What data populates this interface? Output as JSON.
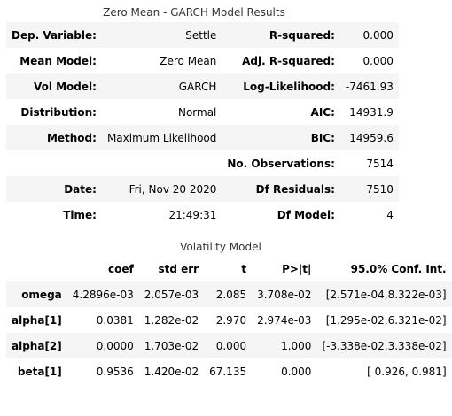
{
  "summary": {
    "caption": "Zero Mean - GARCH Model Results",
    "rows": [
      [
        "Dep. Variable:",
        "Settle",
        "R-squared:",
        "0.000"
      ],
      [
        "Mean Model:",
        "Zero Mean",
        "Adj. R-squared:",
        "0.000"
      ],
      [
        "Vol Model:",
        "GARCH",
        "Log-Likelihood:",
        "-7461.93"
      ],
      [
        "Distribution:",
        "Normal",
        "AIC:",
        "14931.9"
      ],
      [
        "Method:",
        "Maximum Likelihood",
        "BIC:",
        "14959.6"
      ],
      [
        "",
        "",
        "No. Observations:",
        "7514"
      ],
      [
        "Date:",
        "Fri, Nov 20 2020",
        "Df Residuals:",
        "7510"
      ],
      [
        "Time:",
        "21:49:31",
        "Df Model:",
        "4"
      ]
    ]
  },
  "volatility": {
    "caption": "Volatility Model",
    "headers": [
      "",
      "coef",
      "std err",
      "t",
      "P>|t|",
      "95.0% Conf. Int."
    ],
    "rows": [
      [
        "omega",
        "4.2896e-03",
        "2.057e-03",
        "2.085",
        "3.708e-02",
        "[2.571e-04,8.322e-03]"
      ],
      [
        "alpha[1]",
        "0.0381",
        "1.282e-02",
        "2.970",
        "2.974e-03",
        "[1.295e-02,6.321e-02]"
      ],
      [
        "alpha[2]",
        "0.0000",
        "1.703e-02",
        "0.000",
        "1.000",
        "[-3.338e-02,3.338e-02]"
      ],
      [
        "beta[1]",
        "0.9536",
        "1.420e-02",
        "67.135",
        "0.000",
        "[ 0.926, 0.981]"
      ]
    ]
  }
}
